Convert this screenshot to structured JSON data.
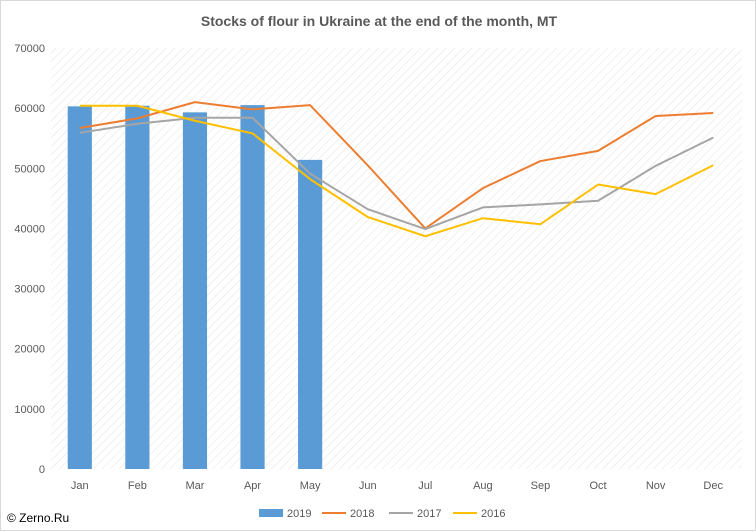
{
  "chart_data": {
    "type": "bar+line",
    "title": "Stocks of flour in Ukraine at the end of the month, MT",
    "categories": [
      "Jan",
      "Feb",
      "Mar",
      "Apr",
      "May",
      "Jun",
      "Jul",
      "Aug",
      "Sep",
      "Oct",
      "Nov",
      "Dec"
    ],
    "yticks": [
      "0",
      "10000",
      "20000",
      "30000",
      "40000",
      "50000",
      "60000",
      "70000"
    ],
    "ylim": [
      0,
      70000
    ],
    "grid": "diagonal-hatched plot area",
    "legend": "bottom",
    "series": [
      {
        "name": "2019",
        "kind": "bar",
        "color": "#5b9bd5",
        "values": [
          60300,
          60400,
          59300,
          60500,
          51400,
          null,
          null,
          null,
          null,
          null,
          null,
          null
        ]
      },
      {
        "name": "2018",
        "kind": "line",
        "color": "#ed7d31",
        "values": [
          56700,
          58300,
          61000,
          59800,
          60500,
          50500,
          40000,
          46700,
          51200,
          52900,
          58700,
          59200
        ]
      },
      {
        "name": "2017",
        "kind": "line",
        "color": "#a5a5a5",
        "values": [
          55900,
          57400,
          58400,
          58400,
          49100,
          43200,
          39900,
          43500,
          44000,
          44600,
          50400,
          55100
        ]
      },
      {
        "name": "2016",
        "kind": "line",
        "color": "#ffc000",
        "values": [
          60400,
          60400,
          57900,
          55800,
          48200,
          41900,
          38700,
          41700,
          40700,
          47300,
          45700,
          50500
        ]
      }
    ]
  },
  "credit": "© Zerno.Ru"
}
